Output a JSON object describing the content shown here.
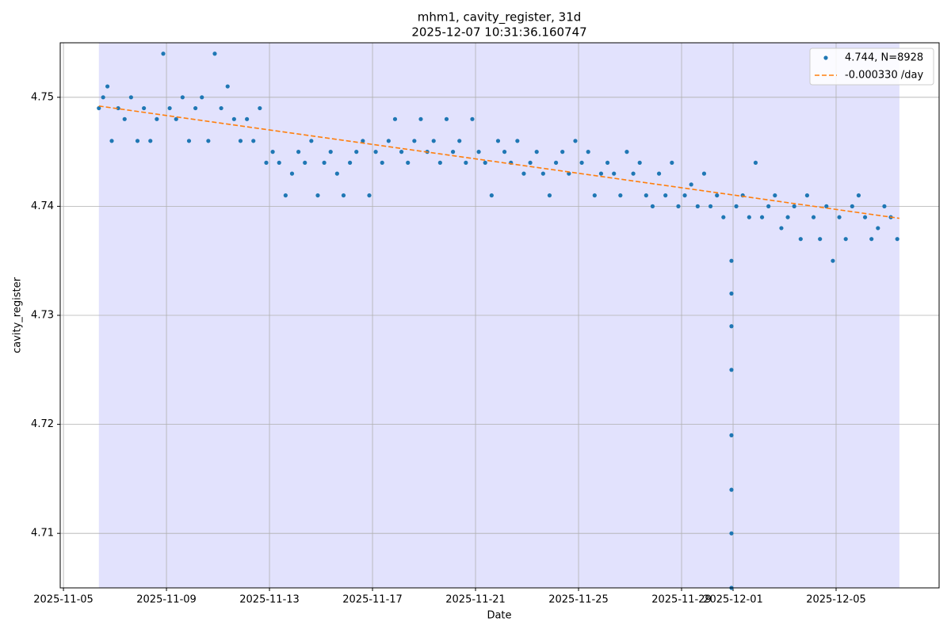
{
  "chart_data": {
    "type": "scatter",
    "title": "mhm1, cavity_register, 31d",
    "subtitle": "2025-12-07 10:31:36.160747",
    "x_label": "Date",
    "y_label": "cavity_register",
    "xlim": [
      "2025-11-04T21:00",
      "2025-12-09T00:00"
    ],
    "xticks": [
      "2025-11-05",
      "2025-11-09",
      "2025-11-13",
      "2025-11-17",
      "2025-11-21",
      "2025-11-25",
      "2025-11-29",
      "2025-12-01",
      "2025-12-05"
    ],
    "ylim": [
      4.705,
      4.755
    ],
    "yticks": [
      4.71,
      4.72,
      4.73,
      4.74,
      4.75
    ],
    "grid": true,
    "legend": "upper right",
    "span": [
      "2025-11-06T09:00",
      "2025-12-07T11:00"
    ],
    "span_color": "#e2e2fd",
    "x": [
      "2025-11-06T09:00",
      "2025-11-06T13:00",
      "2025-11-06T17:00",
      "2025-11-06T21:00",
      "2025-11-07T03:00",
      "2025-11-07T09:00",
      "2025-11-07T15:00",
      "2025-11-07T21:00",
      "2025-11-08T03:00",
      "2025-11-08T09:00",
      "2025-11-08T15:00",
      "2025-11-08T21:00",
      "2025-11-09T03:00",
      "2025-11-09T09:00",
      "2025-11-09T15:00",
      "2025-11-09T21:00",
      "2025-11-10T03:00",
      "2025-11-10T09:00",
      "2025-11-10T15:00",
      "2025-11-10T21:00",
      "2025-11-11T03:00",
      "2025-11-11T09:00",
      "2025-11-11T15:00",
      "2025-11-11T21:00",
      "2025-11-12T03:00",
      "2025-11-12T09:00",
      "2025-11-12T15:00",
      "2025-11-12T21:00",
      "2025-11-13T03:00",
      "2025-11-13T09:00",
      "2025-11-13T15:00",
      "2025-11-13T21:00",
      "2025-11-14T03:00",
      "2025-11-14T09:00",
      "2025-11-14T15:00",
      "2025-11-14T21:00",
      "2025-11-15T03:00",
      "2025-11-15T09:00",
      "2025-11-15T15:00",
      "2025-11-15T21:00",
      "2025-11-16T03:00",
      "2025-11-16T09:00",
      "2025-11-16T15:00",
      "2025-11-16T21:00",
      "2025-11-17T03:00",
      "2025-11-17T09:00",
      "2025-11-17T15:00",
      "2025-11-17T21:00",
      "2025-11-18T03:00",
      "2025-11-18T09:00",
      "2025-11-18T15:00",
      "2025-11-18T21:00",
      "2025-11-19T03:00",
      "2025-11-19T09:00",
      "2025-11-19T15:00",
      "2025-11-19T21:00",
      "2025-11-20T03:00",
      "2025-11-20T09:00",
      "2025-11-20T15:00",
      "2025-11-20T21:00",
      "2025-11-21T03:00",
      "2025-11-21T09:00",
      "2025-11-21T15:00",
      "2025-11-21T21:00",
      "2025-11-22T03:00",
      "2025-11-22T09:00",
      "2025-11-22T15:00",
      "2025-11-22T21:00",
      "2025-11-23T03:00",
      "2025-11-23T09:00",
      "2025-11-23T15:00",
      "2025-11-23T21:00",
      "2025-11-24T03:00",
      "2025-11-24T09:00",
      "2025-11-24T15:00",
      "2025-11-24T21:00",
      "2025-11-25T03:00",
      "2025-11-25T09:00",
      "2025-11-25T15:00",
      "2025-11-25T21:00",
      "2025-11-26T03:00",
      "2025-11-26T09:00",
      "2025-11-26T15:00",
      "2025-11-26T21:00",
      "2025-11-27T03:00",
      "2025-11-27T09:00",
      "2025-11-27T15:00",
      "2025-11-27T21:00",
      "2025-11-28T03:00",
      "2025-11-28T09:00",
      "2025-11-28T15:00",
      "2025-11-28T21:00",
      "2025-11-29T03:00",
      "2025-11-29T09:00",
      "2025-11-29T15:00",
      "2025-11-29T21:00",
      "2025-11-30T03:00",
      "2025-11-30T09:00",
      "2025-11-30T15:00",
      "2025-11-30T22:30",
      "2025-11-30T22:30",
      "2025-11-30T22:30",
      "2025-11-30T22:30",
      "2025-11-30T22:30",
      "2025-11-30T22:30",
      "2025-11-30T22:30",
      "2025-11-30T22:30",
      "2025-12-01T03:00",
      "2025-12-01T09:00",
      "2025-12-01T15:00",
      "2025-12-01T21:00",
      "2025-12-02T03:00",
      "2025-12-02T09:00",
      "2025-12-02T15:00",
      "2025-12-02T21:00",
      "2025-12-03T03:00",
      "2025-12-03T09:00",
      "2025-12-03T15:00",
      "2025-12-03T21:00",
      "2025-12-04T03:00",
      "2025-12-04T09:00",
      "2025-12-04T15:00",
      "2025-12-04T21:00",
      "2025-12-05T03:00",
      "2025-12-05T09:00",
      "2025-12-05T15:00",
      "2025-12-05T21:00",
      "2025-12-06T03:00",
      "2025-12-06T09:00",
      "2025-12-06T15:00",
      "2025-12-06T21:00",
      "2025-12-07T03:00",
      "2025-12-07T09:00"
    ],
    "series": [
      {
        "name": "4.744, N=8928",
        "color": "#1f77b4",
        "values": [
          4.749,
          4.75,
          4.751,
          4.746,
          4.749,
          4.748,
          4.75,
          4.746,
          4.749,
          4.746,
          4.748,
          4.754,
          4.749,
          4.748,
          4.75,
          4.746,
          4.749,
          4.75,
          4.746,
          4.754,
          4.749,
          4.751,
          4.748,
          4.746,
          4.748,
          4.746,
          4.749,
          4.744,
          4.745,
          4.744,
          4.741,
          4.743,
          4.745,
          4.744,
          4.746,
          4.741,
          4.744,
          4.745,
          4.743,
          4.741,
          4.744,
          4.745,
          4.746,
          4.741,
          4.745,
          4.744,
          4.746,
          4.748,
          4.745,
          4.744,
          4.746,
          4.748,
          4.745,
          4.746,
          4.744,
          4.748,
          4.745,
          4.746,
          4.744,
          4.748,
          4.745,
          4.744,
          4.741,
          4.746,
          4.745,
          4.744,
          4.746,
          4.743,
          4.744,
          4.745,
          4.743,
          4.741,
          4.744,
          4.745,
          4.743,
          4.746,
          4.744,
          4.745,
          4.741,
          4.743,
          4.744,
          4.743,
          4.741,
          4.745,
          4.743,
          4.744,
          4.741,
          4.74,
          4.743,
          4.741,
          4.744,
          4.74,
          4.741,
          4.742,
          4.74,
          4.743,
          4.74,
          4.741,
          4.739,
          4.735,
          4.732,
          4.729,
          4.725,
          4.719,
          4.714,
          4.71,
          4.705,
          4.74,
          4.741,
          4.739,
          4.744,
          4.739,
          4.74,
          4.741,
          4.738,
          4.739,
          4.74,
          4.737,
          4.741,
          4.739,
          4.737,
          4.74,
          4.735,
          4.739,
          4.737,
          4.74,
          4.741,
          4.739,
          4.737,
          4.738,
          4.74,
          4.739,
          4.737
        ]
      },
      {
        "name": "-0.000330 /day",
        "color": "#ff7f0e",
        "kind": "line",
        "x": [
          "2025-11-06T09:00",
          "2025-12-07T11:00"
        ],
        "values": [
          4.7492,
          4.7389
        ]
      }
    ]
  }
}
